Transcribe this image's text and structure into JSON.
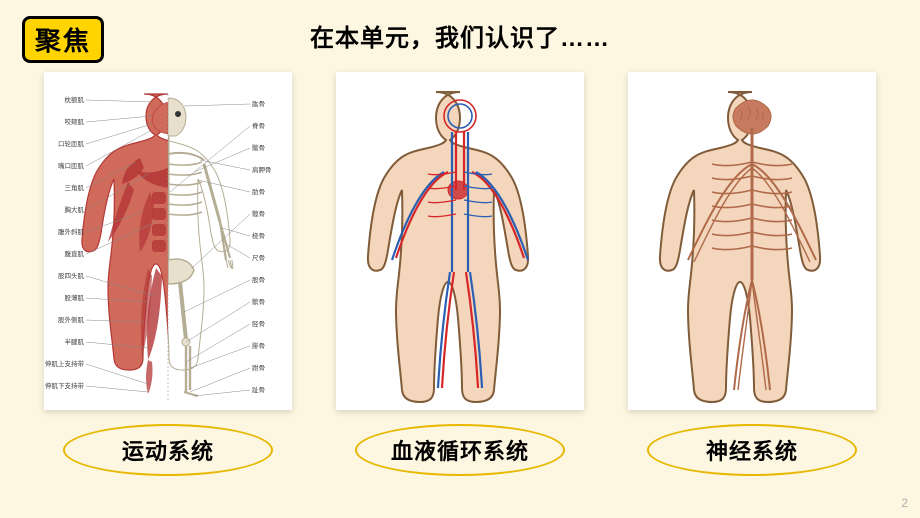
{
  "background_color": "#fdf6e0",
  "focus_badge": {
    "text": "聚焦",
    "border_color": "#000000",
    "bg_color": "#ffd400",
    "text_color": "#000000",
    "fontsize": 26
  },
  "title": {
    "text": "在本单元，我们认识了……",
    "color": "#000000",
    "fontsize": 24
  },
  "cards": [
    {
      "caption": "运动系统",
      "caption_border_color": "#e6b800",
      "caption_text_color": "#000000",
      "diagram": {
        "type": "muscular-skeletal",
        "muscle_color": "#b33636",
        "muscle_mid": "#d06a5a",
        "bone_color": "#e8e0cc",
        "bone_outline": "#b5ad94",
        "label_line_color": "#888888",
        "labels_left": [
          "枕额肌",
          "咬颊肌",
          "口轮匝肌",
          "嘴口匝肌",
          "三角肌",
          "胸大肌",
          "腹外斜肌",
          "腹直肌",
          "股四头肌",
          "股薄肌",
          "股外侧肌",
          "半腱肌",
          "伸肌上支持带",
          "伸肌下支持带"
        ],
        "labels_right": [
          "肱骨",
          "脊骨",
          "髂骨",
          "肩胛骨",
          "肋骨",
          "髋骨",
          "桡骨",
          "尺骨",
          "股骨",
          "髌骨",
          "胫骨",
          "腓骨",
          "跗骨",
          "趾骨"
        ]
      }
    },
    {
      "caption": "血液循环系统",
      "caption_border_color": "#e6b800",
      "caption_text_color": "#000000",
      "diagram": {
        "type": "circulatory",
        "skin_color": "#f3d6bb",
        "skin_outline": "#815c3a",
        "artery_color": "#d62728",
        "vein_color": "#2b5fb3",
        "heart_color": "#d14a4a"
      }
    },
    {
      "caption": "神经系统",
      "caption_border_color": "#e6b800",
      "caption_text_color": "#000000",
      "diagram": {
        "type": "nervous",
        "skin_color": "#f3d6bb",
        "skin_outline": "#815c3a",
        "nerve_color": "#b06a4a",
        "brain_color": "#c77a5f"
      }
    }
  ],
  "page_number": "2"
}
